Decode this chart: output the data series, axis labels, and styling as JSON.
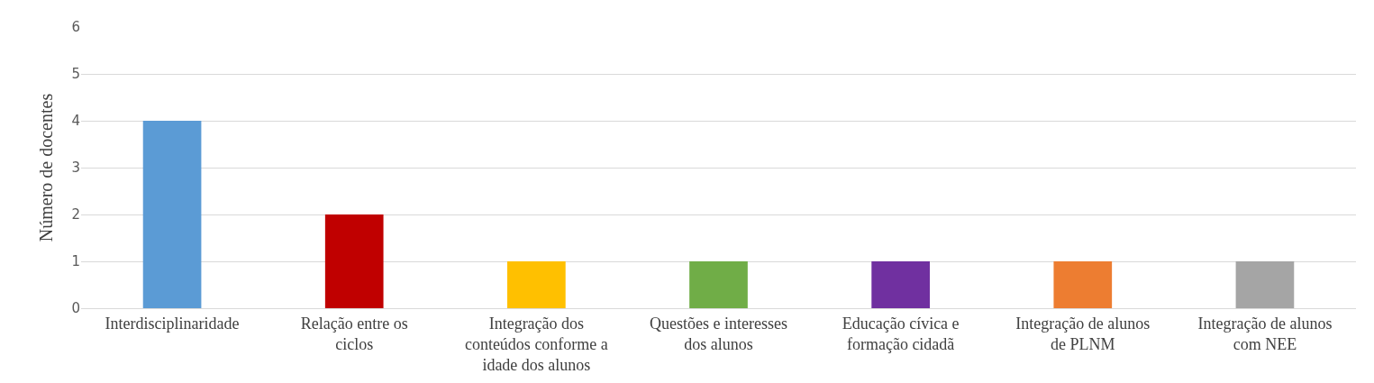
{
  "chart_data": {
    "type": "bar",
    "ylabel": "Número de docentes",
    "categories": [
      "Interdisciplinaridade",
      "Relação entre os ciclos",
      "Integração dos conteúdos conforme a idade dos alunos",
      "Questões e interesses dos alunos",
      "Educação cívica e formação cidadã",
      "Integração de alunos de PLNM",
      "Integração de alunos com NEE"
    ],
    "values": [
      4,
      2,
      1,
      1,
      1,
      1,
      1
    ],
    "colors": [
      "#5b9bd5",
      "#c00000",
      "#ffc000",
      "#70ad47",
      "#7030a0",
      "#ed7d31",
      "#a5a5a5"
    ],
    "ylim": [
      0,
      6
    ],
    "yticks": [
      0,
      1,
      2,
      3,
      4,
      5,
      6
    ],
    "grid": "y"
  }
}
